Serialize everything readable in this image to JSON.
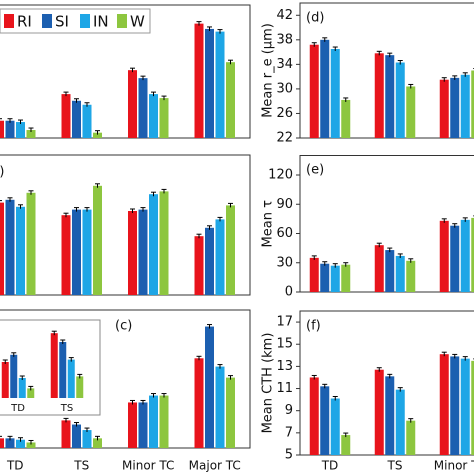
{
  "chart_data": [
    {
      "type": "bar",
      "ylim": [
        0,
        100
      ],
      "series": [
        {
          "name": "RI",
          "color": "#e8141c",
          "values": [
            13,
            33,
            51,
            86
          ]
        },
        {
          "name": "SI",
          "color": "#1c5fb0",
          "values": [
            13,
            28,
            45,
            82
          ]
        },
        {
          "name": "IN",
          "color": "#1ea6e6",
          "values": [
            12,
            25,
            33,
            80
          ]
        },
        {
          "name": "W",
          "color": "#8dc63f",
          "values": [
            6,
            4,
            30,
            57
          ]
        }
      ]
    },
    {
      "type": "bar",
      "ylim": [
        0,
        100
      ],
      "panel": "(b)",
      "series": [
        {
          "color": "#e8141c",
          "values": [
            66,
            57,
            60,
            42
          ]
        },
        {
          "color": "#1c5fb0",
          "values": [
            68,
            61,
            61,
            48
          ]
        },
        {
          "color": "#1ea6e6",
          "values": [
            63,
            61,
            72,
            54
          ]
        },
        {
          "color": "#8dc63f",
          "values": [
            73,
            78,
            74,
            64
          ]
        }
      ]
    },
    {
      "type": "bar",
      "ylim": [
        0,
        100
      ],
      "panel": "(c)",
      "categories": [
        "TD",
        "TS",
        "Minor TC",
        "Major TC"
      ],
      "series": [
        {
          "color": "#e8141c",
          "values": [
            7,
            20,
            33,
            65
          ]
        },
        {
          "color": "#1c5fb0",
          "values": [
            7,
            17,
            33,
            88
          ]
        },
        {
          "color": "#1ea6e6",
          "values": [
            6,
            13,
            38,
            59
          ]
        },
        {
          "color": "#8dc63f",
          "values": [
            4,
            7,
            38,
            51
          ]
        }
      ]
    },
    {
      "type": "bar",
      "ylim": [
        0,
        100
      ],
      "categories": [
        "TD",
        "TS"
      ],
      "series": [
        {
          "color": "#e8141c",
          "values": [
            45,
            81
          ]
        },
        {
          "color": "#1c5fb0",
          "values": [
            54,
            70
          ]
        },
        {
          "color": "#1ea6e6",
          "values": [
            25,
            48
          ]
        },
        {
          "color": "#8dc63f",
          "values": [
            12,
            27
          ]
        }
      ]
    },
    {
      "type": "bar",
      "panel": "(d)",
      "ylabel": "Mean r_e (μm)",
      "ylim": [
        22,
        44
      ],
      "yticks": [
        22,
        26,
        30,
        34,
        38,
        42
      ],
      "series": [
        {
          "color": "#e8141c",
          "values": [
            37.2,
            35.8,
            31.5
          ]
        },
        {
          "color": "#1c5fb0",
          "values": [
            38.0,
            35.5,
            31.8
          ]
        },
        {
          "color": "#1ea6e6",
          "values": [
            36.5,
            34.3,
            32.3
          ]
        },
        {
          "color": "#8dc63f",
          "values": [
            28.2,
            30.4,
            33.0
          ]
        }
      ]
    },
    {
      "type": "bar",
      "panel": "(e)",
      "ylabel": "Mean τ",
      "ylim": [
        0,
        140
      ],
      "yticks": [
        0,
        30,
        60,
        90,
        120
      ],
      "series": [
        {
          "color": "#e8141c",
          "values": [
            35,
            48,
            73
          ]
        },
        {
          "color": "#1c5fb0",
          "values": [
            29,
            43,
            68
          ]
        },
        {
          "color": "#1ea6e6",
          "values": [
            27,
            37,
            74
          ]
        },
        {
          "color": "#8dc63f",
          "values": [
            28,
            32,
            76
          ]
        }
      ]
    },
    {
      "type": "bar",
      "panel": "(f)",
      "ylabel": "Mean CTH (km)",
      "ylim": [
        5,
        18
      ],
      "yticks": [
        5,
        7,
        9,
        11,
        13,
        15,
        17
      ],
      "categories": [
        "TD",
        "TS",
        "Minor TC"
      ],
      "series": [
        {
          "color": "#e8141c",
          "values": [
            12.0,
            12.7,
            14.1
          ]
        },
        {
          "color": "#1c5fb0",
          "values": [
            11.2,
            12.1,
            13.9
          ]
        },
        {
          "color": "#1ea6e6",
          "values": [
            10.1,
            10.9,
            13.7
          ]
        },
        {
          "color": "#8dc63f",
          "values": [
            6.8,
            8.1,
            13.5
          ]
        }
      ]
    }
  ]
}
